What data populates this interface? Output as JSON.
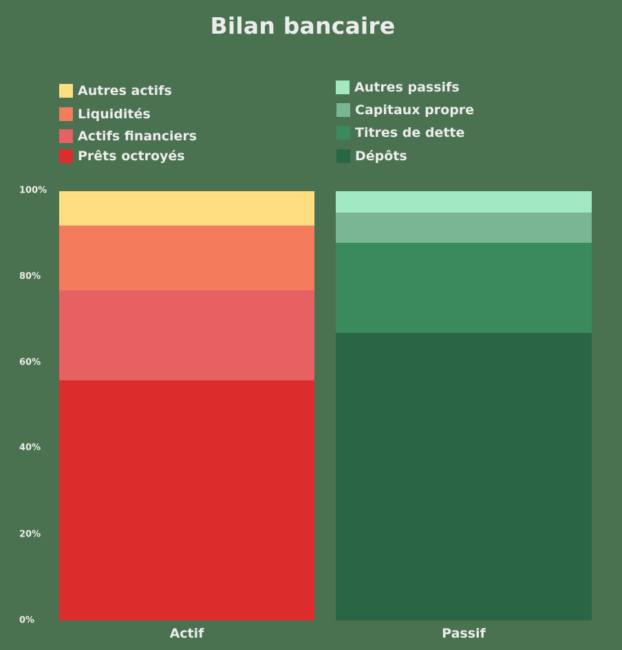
{
  "title": "Bilan bancaire",
  "legend": {
    "actif": [
      {
        "label": "Autres actifs",
        "color": "#ffde80"
      },
      {
        "label": "Liquidités",
        "color": "#f47b5b"
      },
      {
        "label": "Actifs financiers",
        "color": "#e76163"
      },
      {
        "label": "Prêts octroyés",
        "color": "#dc2c2c"
      }
    ],
    "passif": [
      {
        "label": "Autres passifs",
        "color": "#a2e8c0"
      },
      {
        "label": "Capitaux propre",
        "color": "#79b794"
      },
      {
        "label": "Titres de dette",
        "color": "#3b8a5e"
      },
      {
        "label": "Dépôts",
        "color": "#286645"
      }
    ]
  },
  "yaxis": {
    "ticks": [
      "0%",
      "20%",
      "40%",
      "60%",
      "80%",
      "100%"
    ]
  },
  "xaxis": {
    "labels": [
      "Actif",
      "Passif"
    ]
  },
  "chart_data": {
    "type": "bar",
    "stacked": true,
    "title": "Bilan bancaire",
    "xlabel": "",
    "ylabel": "",
    "ylim": [
      0,
      100
    ],
    "categories": [
      "Actif",
      "Passif"
    ],
    "series": [
      {
        "name": "Prêts octroyés",
        "stack": "Actif",
        "values": [
          56,
          0
        ],
        "color": "#dc2c2c"
      },
      {
        "name": "Actifs financiers",
        "stack": "Actif",
        "values": [
          21,
          0
        ],
        "color": "#e76163"
      },
      {
        "name": "Liquidités",
        "stack": "Actif",
        "values": [
          15,
          0
        ],
        "color": "#f47b5b"
      },
      {
        "name": "Autres actifs",
        "stack": "Actif",
        "values": [
          8,
          0
        ],
        "color": "#ffde80"
      },
      {
        "name": "Dépôts",
        "stack": "Passif",
        "values": [
          0,
          67
        ],
        "color": "#286645"
      },
      {
        "name": "Titres de dette",
        "stack": "Passif",
        "values": [
          0,
          21
        ],
        "color": "#3b8a5e"
      },
      {
        "name": "Capitaux propre",
        "stack": "Passif",
        "values": [
          0,
          7
        ],
        "color": "#79b794"
      },
      {
        "name": "Autres passifs",
        "stack": "Passif",
        "values": [
          0,
          5
        ],
        "color": "#a2e8c0"
      }
    ],
    "yticks": [
      "0%",
      "20%",
      "40%",
      "60%",
      "80%",
      "100%"
    ],
    "grid": false,
    "legend_position": "top"
  }
}
